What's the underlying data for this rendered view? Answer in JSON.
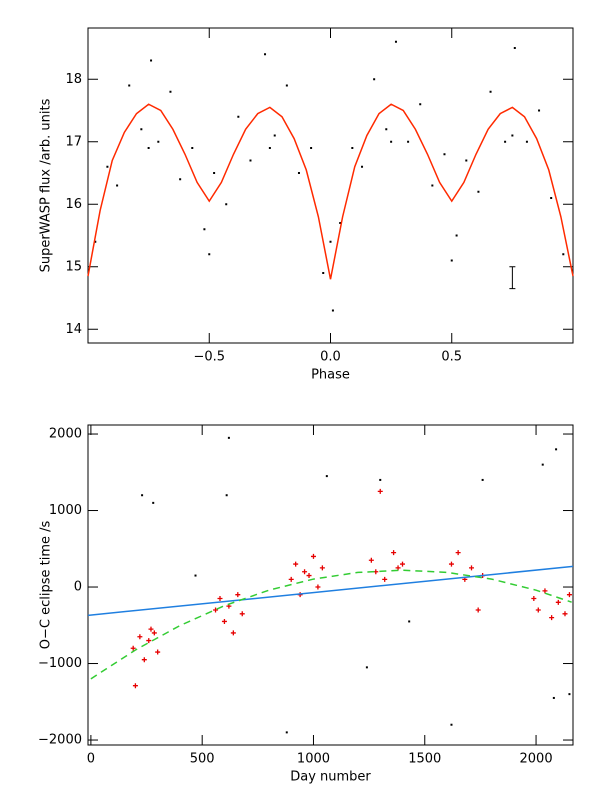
{
  "chart_data": [
    {
      "type": "scatter",
      "xlabel": "Phase",
      "ylabel": "SuperWASP flux /arb. units",
      "xlim": [
        -1,
        1
      ],
      "ylim": [
        13.78,
        18.82
      ],
      "xticks": [
        {
          "value": -0.5,
          "label": "−0.5"
        },
        {
          "value": 0,
          "label": "0.0"
        },
        {
          "value": 0.5,
          "label": "0.5"
        }
      ],
      "yticks": [
        14,
        15,
        16,
        17,
        18
      ],
      "series": [
        {
          "mode": "points",
          "color": "#000000",
          "x": [
            -0.97,
            -0.92,
            -0.88,
            -0.83,
            -0.78,
            -0.74,
            -0.71,
            -0.66,
            -0.62,
            -0.57,
            -0.52,
            -0.48,
            -0.43,
            -0.38,
            -0.33,
            -0.27,
            -0.23,
            -0.18,
            -0.13,
            -0.08,
            -0.03,
            0.01,
            0.04,
            0.09,
            0.13,
            0.18,
            0.23,
            0.27,
            0.32,
            0.37,
            0.42,
            0.47,
            0.52,
            0.56,
            0.61,
            0.66,
            0.72,
            0.76,
            0.81,
            0.86,
            0.91,
            0.96,
            -0.5,
            0.5,
            0,
            -0.25,
            0.25,
            0.75,
            -0.75
          ],
          "values": [
            15.4,
            16.6,
            16.3,
            17.9,
            17.2,
            18.3,
            17.0,
            17.8,
            16.4,
            16.9,
            15.6,
            16.5,
            16.0,
            17.4,
            16.7,
            18.4,
            17.1,
            17.9,
            16.5,
            16.9,
            14.9,
            14.3,
            15.7,
            16.9,
            16.6,
            18.0,
            17.2,
            18.6,
            17.0,
            17.6,
            16.3,
            16.8,
            15.5,
            16.7,
            16.2,
            17.8,
            17.0,
            18.5,
            17.0,
            17.5,
            16.1,
            15.2,
            15.2,
            15.1,
            15.4,
            16.9,
            17.0,
            17.1,
            16.9
          ]
        },
        {
          "mode": "line",
          "color": "#ff2a00",
          "x": [
            -1,
            -0.95,
            -0.9,
            -0.85,
            -0.8,
            -0.75,
            -0.7,
            -0.65,
            -0.6,
            -0.55,
            -0.5,
            -0.45,
            -0.4,
            -0.35,
            -0.3,
            -0.25,
            -0.2,
            -0.15,
            -0.1,
            -0.05,
            0,
            0.05,
            0.1,
            0.15,
            0.2,
            0.25,
            0.3,
            0.35,
            0.4,
            0.45,
            0.5,
            0.55,
            0.6,
            0.65,
            0.7,
            0.75,
            0.8,
            0.85,
            0.9,
            0.95,
            1
          ],
          "values": [
            14.85,
            15.9,
            16.7,
            17.15,
            17.45,
            17.6,
            17.5,
            17.2,
            16.8,
            16.35,
            16.05,
            16.35,
            16.8,
            17.2,
            17.45,
            17.55,
            17.4,
            17.05,
            16.55,
            15.8,
            14.8,
            15.8,
            16.6,
            17.1,
            17.45,
            17.6,
            17.5,
            17.2,
            16.8,
            16.35,
            16.05,
            16.35,
            16.8,
            17.2,
            17.45,
            17.55,
            17.4,
            17.05,
            16.55,
            15.8,
            14.85
          ]
        }
      ],
      "error_bar": {
        "x": 0.75,
        "low": 14.65,
        "high": 15.0
      }
    },
    {
      "type": "scatter",
      "xlabel": "Day number",
      "ylabel": "O−C eclipse time /s",
      "xlim": [
        -13,
        2166
      ],
      "ylim": [
        -2065,
        2118
      ],
      "xticks": [
        0,
        500,
        1000,
        1500,
        2000
      ],
      "yticks": [
        {
          "value": -2000,
          "label": "−2000"
        },
        {
          "value": -1000,
          "label": "−1000"
        },
        0,
        1000,
        2000
      ],
      "series": [
        {
          "mode": "points",
          "color": "#000000",
          "x": [
            230,
            280,
            470,
            620,
            610,
            880,
            1060,
            1240,
            1300,
            1430,
            1620,
            1760,
            2030,
            2090,
            2080,
            2150
          ],
          "values": [
            1200,
            1100,
            150,
            1950,
            1200,
            -1900,
            1450,
            -1050,
            1400,
            -450,
            -1800,
            1400,
            1600,
            1800,
            -1450,
            -1400
          ]
        },
        {
          "mode": "cross",
          "color": "#e60000",
          "x": [
            190,
            200,
            220,
            240,
            260,
            270,
            285,
            300,
            560,
            580,
            600,
            620,
            640,
            660,
            680,
            900,
            920,
            940,
            960,
            980,
            1000,
            1020,
            1040,
            1260,
            1280,
            1300,
            1320,
            1360,
            1380,
            1400,
            1620,
            1650,
            1680,
            1710,
            1740,
            1760,
            1990,
            2010,
            2040,
            2070,
            2100,
            2130,
            2150
          ],
          "values": [
            -800,
            -1290,
            -650,
            -950,
            -700,
            -550,
            -600,
            -850,
            -300,
            -150,
            -450,
            -250,
            -600,
            -100,
            -350,
            100,
            300,
            -100,
            200,
            150,
            400,
            0,
            250,
            350,
            200,
            1250,
            100,
            450,
            250,
            300,
            300,
            450,
            100,
            250,
            -300,
            150,
            -150,
            -300,
            -50,
            -400,
            -200,
            -350,
            -100
          ]
        },
        {
          "mode": "line",
          "color": "#1f7fe0",
          "x": [
            -13,
            2166
          ],
          "values": [
            -370,
            270
          ]
        },
        {
          "mode": "dash",
          "color": "#33cc33",
          "x": [
            0,
            200,
            400,
            600,
            800,
            1000,
            1200,
            1400,
            1600,
            1800,
            2000,
            2160
          ],
          "values": [
            -1200,
            -823,
            -504,
            -244,
            -41,
            104,
            191,
            220,
            191,
            104,
            -41,
            -198
          ]
        }
      ]
    }
  ]
}
